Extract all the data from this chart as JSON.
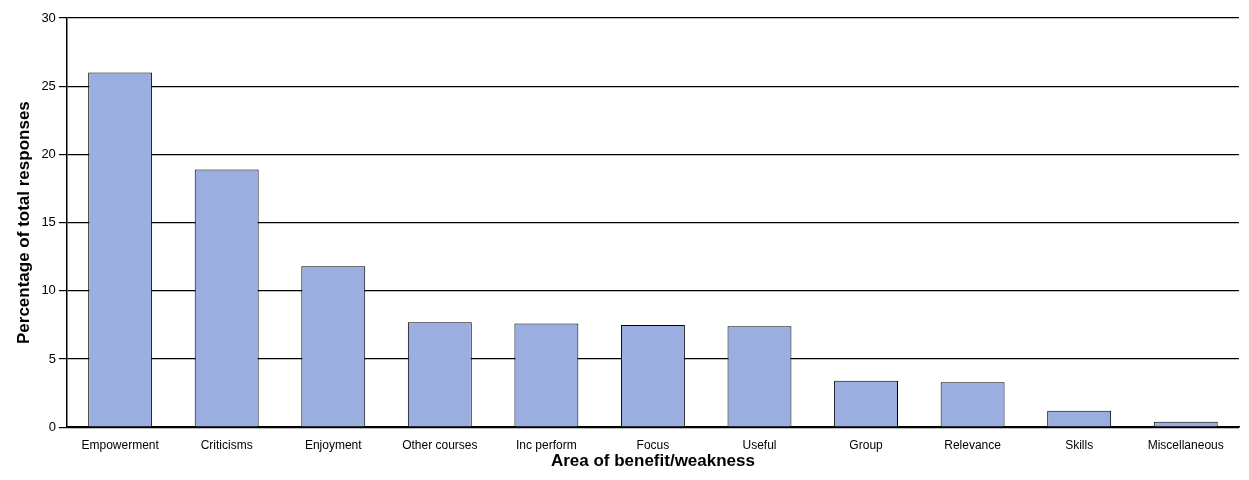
{
  "chart_data": {
    "type": "bar",
    "xlabel": "Area of benefit/weakness",
    "ylabel": "Percentage of total responses",
    "categories": [
      "Empowerment",
      "Criticisms",
      "Enjoyment",
      "Other courses",
      "Inc perform",
      "Focus",
      "Useful",
      "Group",
      "Relevance",
      "Skills",
      "Miscellaneous"
    ],
    "values": [
      26,
      18.9,
      11.8,
      7.7,
      7.6,
      7.5,
      7.4,
      3.4,
      3.3,
      1.2,
      0.4
    ],
    "color": "#9aaee0",
    "ylim": [
      0,
      30
    ],
    "yticks": [
      0,
      5,
      10,
      15,
      20,
      25,
      30
    ],
    "grid": "y",
    "legend": false
  }
}
